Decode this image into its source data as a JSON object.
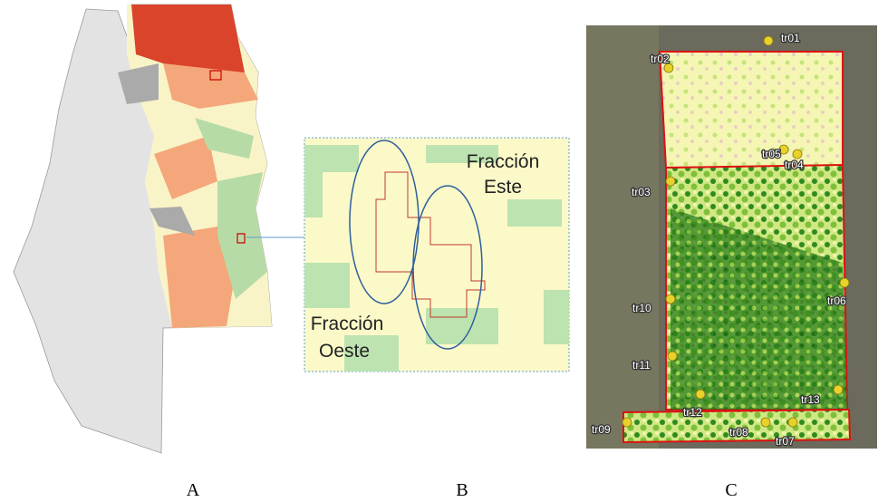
{
  "panels": [
    {
      "label": "A"
    },
    {
      "label": "B",
      "annotations": [
        {
          "lines": [
            "Fracción",
            "Este"
          ]
        },
        {
          "lines": [
            "Fracción",
            "Oeste"
          ]
        }
      ]
    },
    {
      "label": "C",
      "markers": [
        {
          "label": "tr01"
        },
        {
          "label": "tr02"
        },
        {
          "label": "tr03"
        },
        {
          "label": "tr04"
        },
        {
          "label": "tr05"
        },
        {
          "label": "tr06"
        },
        {
          "label": "tr07"
        },
        {
          "label": "tr08"
        },
        {
          "label": "tr09"
        },
        {
          "label": "tr10"
        },
        {
          "label": "tr11"
        },
        {
          "label": "tr12"
        },
        {
          "label": "tr13"
        }
      ]
    }
  ]
}
